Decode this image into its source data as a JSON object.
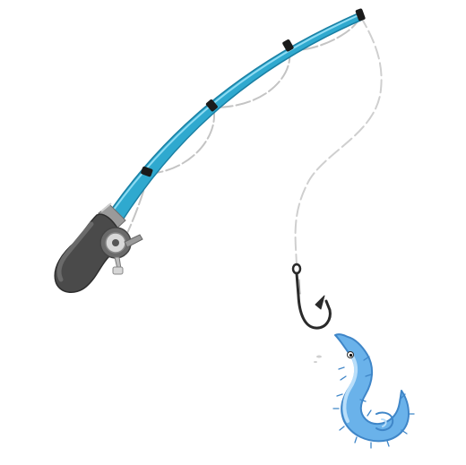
{
  "illustration": {
    "subject": "fishing-rod-with-hook-and-worm",
    "colors": {
      "rod_blue": "#2fa9cf",
      "rod_blue_light": "#7fd4ee",
      "rod_blue_dark": "#1a7fa3",
      "handle_dark": "#3e3e3e",
      "handle_mid": "#5c5c5c",
      "reel_gray": "#8c8c8c",
      "line_gray": "#c8c8c8",
      "guide_black": "#1b1b1b",
      "hook_dark": "#2a2a2a",
      "worm_blue": "#6ab2ea",
      "worm_light": "#a9d6f7",
      "worm_dark": "#3f86c8",
      "background": "#ffffff"
    },
    "icons": [
      "fishing-rod-icon",
      "reel-icon",
      "hook-icon",
      "worm-icon"
    ]
  }
}
